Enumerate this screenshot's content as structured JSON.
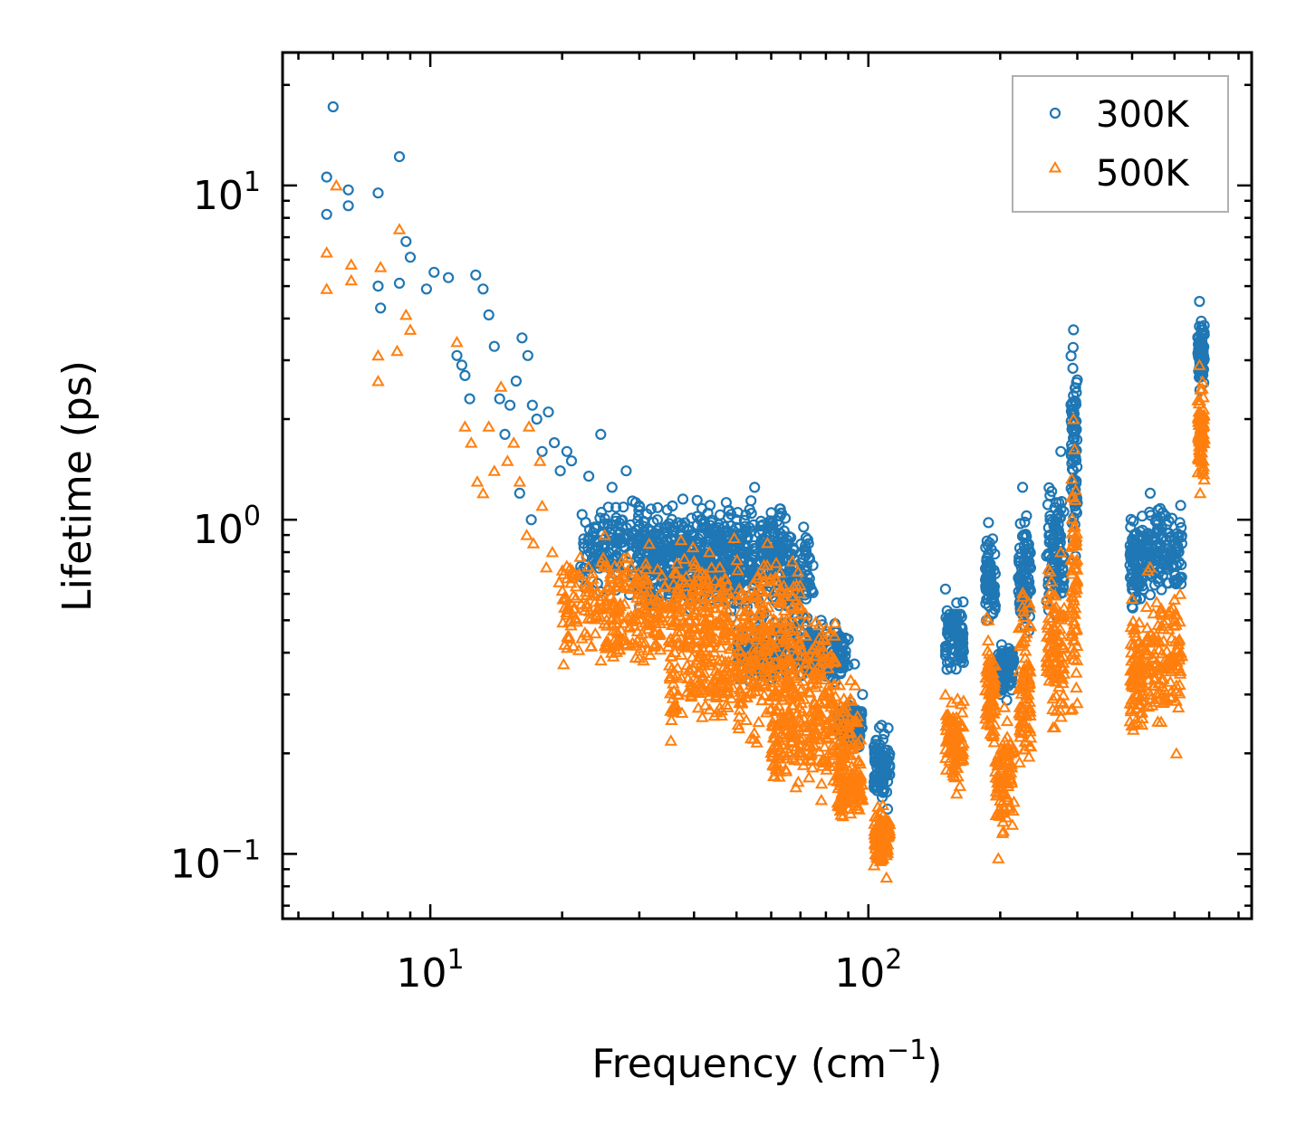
{
  "chart_data": {
    "type": "scatter",
    "title": "",
    "xlabel": "Frequency (cm",
    "xlabel_sup": "−1",
    "xlabel_end": ")",
    "ylabel": "Lifetime (ps)",
    "xscale": "log",
    "yscale": "log",
    "xlim": [
      4.6,
      750
    ],
    "ylim": [
      0.064,
      25
    ],
    "xticks": [
      {
        "value": 10,
        "base": "10",
        "exp": "1"
      },
      {
        "value": 100,
        "base": "10",
        "exp": "2"
      }
    ],
    "yticks": [
      {
        "value": 0.1,
        "base": "10",
        "exp": "−1"
      },
      {
        "value": 1,
        "base": "10",
        "exp": "0"
      },
      {
        "value": 10,
        "base": "10",
        "exp": "1"
      }
    ],
    "legend": {
      "position": "top-right"
    },
    "series": [
      {
        "name": "300K",
        "color": "#1f77b4",
        "marker": "circle-open",
        "clusters": [
          [
            22,
            65,
            0.55,
            1.25
          ],
          [
            30,
            75,
            0.45,
            1.1
          ],
          [
            50,
            90,
            0.3,
            0.55
          ],
          [
            85,
            97,
            0.2,
            0.3
          ],
          [
            103,
            112,
            0.13,
            0.26
          ],
          [
            150,
            165,
            0.33,
            0.6
          ],
          [
            185,
            195,
            0.45,
            0.95
          ],
          [
            195,
            215,
            0.28,
            0.45
          ],
          [
            220,
            235,
            0.4,
            1.2
          ],
          [
            255,
            280,
            0.45,
            1.5
          ],
          [
            290,
            300,
            0.6,
            3.7
          ],
          [
            395,
            425,
            0.5,
            1.1
          ],
          [
            430,
            520,
            0.55,
            1.2
          ],
          [
            565,
            585,
            2.2,
            4.5
          ]
        ],
        "x": [
          5.8,
          6.0,
          5.8,
          6.5,
          6.5,
          7.6,
          7.6,
          7.7,
          8.5,
          8.5,
          8.8,
          9.0,
          9.8,
          10.2,
          11.0,
          11.5,
          11.8,
          12.0,
          12.3,
          12.7,
          13.2,
          13.6,
          14.0,
          14.4,
          14.8,
          15.2,
          15.7,
          16.2,
          16.7,
          17.1,
          17.5,
          18.0,
          18.6,
          19.2,
          19.8,
          20.5,
          21.0,
          16.0,
          17.0,
          23.0,
          24.5,
          26.0,
          28.0,
          30.0,
          33.0,
          36.0,
          40.0,
          45.0,
          50.0,
          55.0,
          60.0,
          62.0,
          68.0,
          72.0,
          78.0,
          82.0,
          93.0,
          97.0,
          108.0,
          150.0,
          160.0,
          188.0,
          196.0,
          205.0,
          225.0,
          232.0,
          260.0,
          275.0,
          294.0,
          400.0,
          440.0,
          470.0,
          505.0,
          570.0,
          576.0
        ],
        "y": [
          10.6,
          17.2,
          8.2,
          9.7,
          8.7,
          9.5,
          5.0,
          4.3,
          12.2,
          5.1,
          6.8,
          6.1,
          4.9,
          5.5,
          5.3,
          3.1,
          2.9,
          2.7,
          2.3,
          5.4,
          4.9,
          4.1,
          3.3,
          2.3,
          1.8,
          2.2,
          2.6,
          3.5,
          3.1,
          2.2,
          2.0,
          1.6,
          2.1,
          1.7,
          1.4,
          1.6,
          1.5,
          1.2,
          1.0,
          1.35,
          1.8,
          1.25,
          1.4,
          1.1,
          1.0,
          0.95,
          0.9,
          0.82,
          1.0,
          1.25,
          1.05,
          0.68,
          0.55,
          0.48,
          0.5,
          0.38,
          0.37,
          0.3,
          0.22,
          0.62,
          0.5,
          0.98,
          0.38,
          0.32,
          1.25,
          0.8,
          1.0,
          1.6,
          3.7,
          0.55,
          1.2,
          1.05,
          0.65,
          4.5,
          3.5
        ]
      },
      {
        "name": "500K",
        "color": "#ff7f0e",
        "marker": "triangle-open",
        "clusters": [
          [
            20,
            70,
            0.3,
            0.95
          ],
          [
            35,
            85,
            0.2,
            0.6
          ],
          [
            60,
            95,
            0.14,
            0.35
          ],
          [
            85,
            97,
            0.12,
            0.2
          ],
          [
            103,
            112,
            0.085,
            0.15
          ],
          [
            150,
            165,
            0.14,
            0.35
          ],
          [
            185,
            195,
            0.18,
            0.52
          ],
          [
            195,
            215,
            0.1,
            0.28
          ],
          [
            220,
            235,
            0.15,
            0.75
          ],
          [
            255,
            280,
            0.2,
            0.9
          ],
          [
            290,
            300,
            0.2,
            2.0
          ],
          [
            395,
            425,
            0.2,
            0.58
          ],
          [
            430,
            520,
            0.22,
            0.75
          ],
          [
            565,
            585,
            1.1,
            2.9
          ]
        ],
        "x": [
          5.8,
          5.8,
          6.1,
          6.6,
          6.6,
          7.6,
          7.6,
          7.7,
          8.5,
          8.4,
          8.8,
          9.0,
          11.5,
          12.0,
          12.4,
          12.8,
          13.2,
          13.6,
          14.0,
          14.5,
          15.0,
          15.5,
          16.0,
          16.6,
          17.2,
          17.8,
          18.4,
          19.0,
          19.7,
          16.8,
          18.0,
          25.0,
          30.0,
          40.0,
          48.0,
          60.0,
          72.0,
          80.0,
          86.0,
          92.0,
          96.0,
          108.0,
          110.0,
          150.0,
          160.0,
          188.0,
          198.0,
          205.0,
          225.0,
          232.0,
          260.0,
          275.0,
          294.0,
          400.0,
          440.0,
          480.0,
          505.0,
          570.0,
          576.0
        ],
        "y": [
          6.3,
          4.9,
          10.0,
          5.8,
          5.2,
          3.1,
          2.6,
          5.7,
          7.4,
          3.2,
          4.1,
          3.7,
          3.4,
          1.9,
          1.7,
          1.3,
          1.2,
          1.9,
          1.4,
          2.5,
          1.5,
          1.7,
          1.3,
          0.9,
          0.85,
          1.5,
          0.72,
          0.8,
          0.65,
          1.9,
          1.1,
          0.9,
          0.65,
          0.75,
          0.5,
          0.35,
          0.45,
          0.38,
          0.32,
          0.25,
          0.22,
          0.14,
          0.085,
          0.3,
          0.24,
          0.5,
          0.097,
          0.2,
          0.55,
          0.3,
          0.7,
          0.8,
          2.0,
          0.58,
          0.72,
          0.5,
          0.2,
          2.9,
          2.0
        ]
      }
    ]
  }
}
